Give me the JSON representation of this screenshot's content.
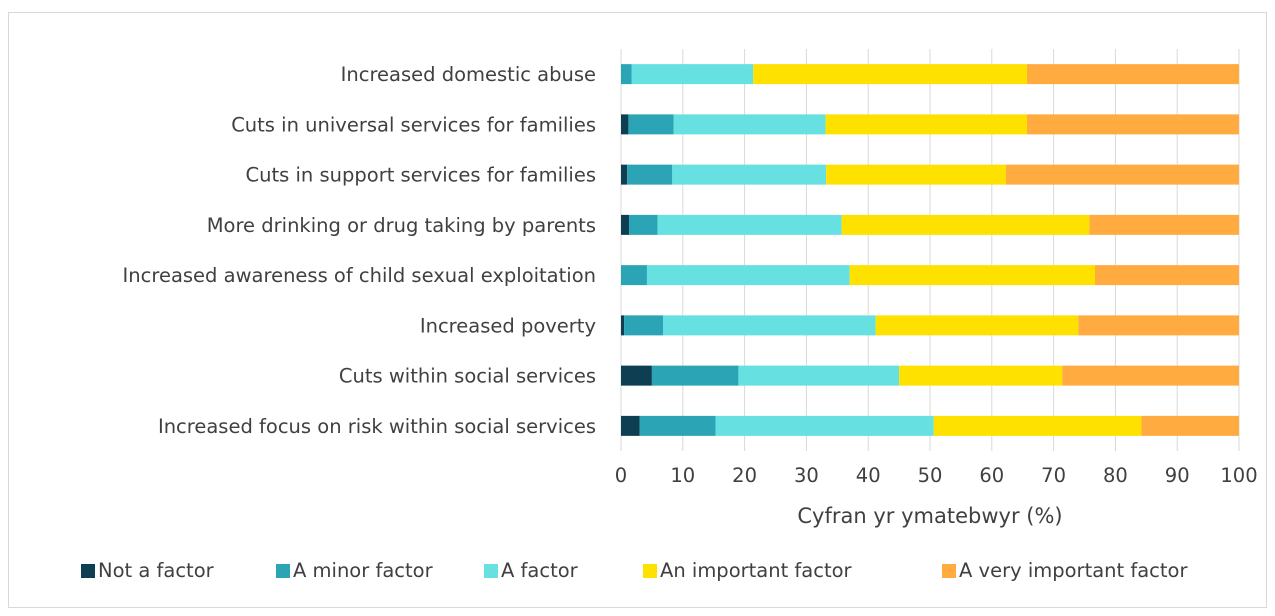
{
  "chart_data": {
    "type": "bar",
    "orientation": "horizontal",
    "stacked": true,
    "categories": [
      "Increased domestic abuse",
      "Cuts in universal services for families",
      "Cuts in support services for families",
      "More drinking or drug taking by parents",
      "Increased awareness of child sexual exploitation",
      "Increased poverty",
      "Cuts within social services",
      "Increased focus on risk within social services"
    ],
    "series": [
      {
        "name": "Not a factor",
        "color": "#0d3e52",
        "values": [
          0,
          1.2,
          1.0,
          1.3,
          0,
          0.5,
          5.0,
          3.0
        ]
      },
      {
        "name": "A minor factor",
        "color": "#2ba5b5",
        "values": [
          1.7,
          7.3,
          7.3,
          4.6,
          4.2,
          6.3,
          14.0,
          12.3
        ]
      },
      {
        "name": "A factor",
        "color": "#66e0e0",
        "values": [
          19.7,
          24.6,
          24.9,
          29.8,
          32.8,
          34.4,
          26.0,
          35.3
        ]
      },
      {
        "name": "An important factor",
        "color": "#ffe100",
        "values": [
          44.3,
          32.6,
          29.1,
          40.1,
          39.7,
          32.8,
          26.4,
          33.6
        ]
      },
      {
        "name": "A very important factor",
        "color": "#ffab40",
        "values": [
          34.3,
          34.3,
          37.7,
          24.2,
          23.3,
          26.0,
          28.6,
          15.8
        ]
      }
    ],
    "xlabel": "Cyfran yr ymatebwyr (%)",
    "ylabel": "",
    "xlim": [
      0,
      100
    ],
    "xticks": [
      0,
      10,
      20,
      30,
      40,
      50,
      60,
      70,
      80,
      90,
      100
    ],
    "grid": true,
    "legend_position": "bottom"
  }
}
